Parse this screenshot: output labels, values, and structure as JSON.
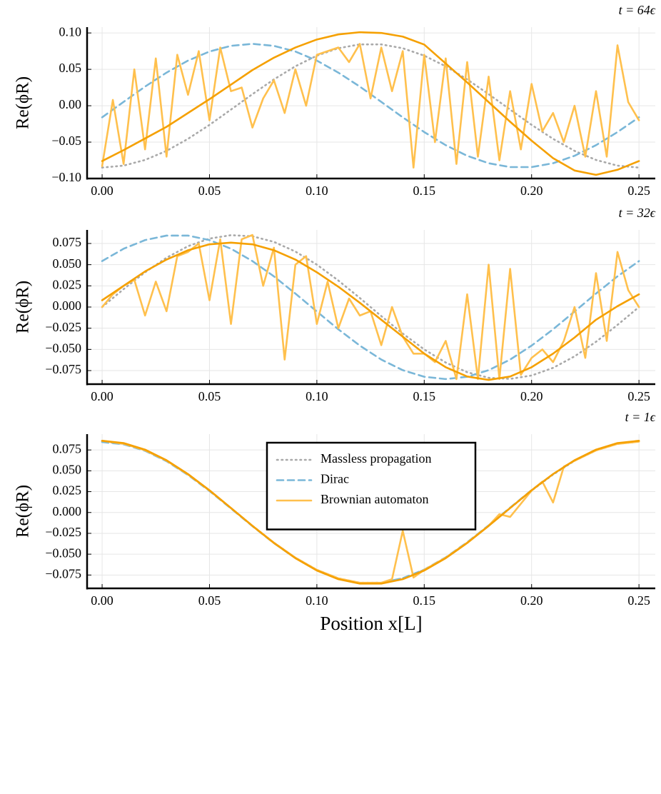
{
  "chart_data": [
    {
      "type": "line",
      "title": "t = 64ϵ",
      "ylabel": "Re(ϕR)",
      "grid": true,
      "xlim": [
        -0.007,
        0.2576
      ],
      "ylim": [
        -0.1,
        0.108
      ],
      "xticks": [
        {
          "value": 0,
          "label": "0.00"
        },
        {
          "value": 0.05,
          "label": "0.05"
        },
        {
          "value": 0.1,
          "label": "0.10"
        },
        {
          "value": 0.15,
          "label": "0.15"
        },
        {
          "value": 0.2,
          "label": "0.20"
        },
        {
          "value": 0.25,
          "label": "0.25"
        }
      ],
      "yticks": [
        {
          "value": -0.1,
          "label": "−0.10"
        },
        {
          "value": -0.05,
          "label": "−0.05"
        },
        {
          "value": 0,
          "label": "0.00"
        },
        {
          "value": 0.05,
          "label": "0.05"
        },
        {
          "value": 0.1,
          "label": "0.10"
        }
      ],
      "x": [
        0,
        0.01,
        0.02,
        0.03,
        0.04,
        0.05,
        0.06,
        0.07,
        0.08,
        0.09,
        0.1,
        0.11,
        0.12,
        0.13,
        0.14,
        0.15,
        0.16,
        0.17,
        0.18,
        0.19,
        0.2,
        0.21,
        0.22,
        0.23,
        0.24,
        0.25
      ],
      "series": [
        {
          "color": "#a9a9a9",
          "dash": "dotted",
          "values": [
            -0.085,
            -0.0823,
            -0.0745,
            -0.062,
            -0.0455,
            -0.0263,
            -0.0053,
            0.0159,
            0.0362,
            0.0542,
            0.0688,
            0.079,
            0.0843,
            0.0843,
            0.079,
            0.0688,
            0.0542,
            0.0362,
            0.0159,
            -0.0053,
            -0.0263,
            -0.0455,
            -0.062,
            -0.0745,
            -0.0823,
            -0.085
          ]
        },
        {
          "color": "#7ab7d8",
          "dash": "dashed",
          "values": [
            -0.0159,
            0.0053,
            0.0263,
            0.0455,
            0.062,
            0.0745,
            0.0823,
            0.085,
            0.0823,
            0.0745,
            0.062,
            0.0455,
            0.0263,
            0.0053,
            -0.0159,
            -0.0362,
            -0.0542,
            -0.0688,
            -0.079,
            -0.0843,
            -0.0843,
            -0.079,
            -0.0688,
            -0.0542,
            -0.0362,
            -0.0159
          ]
        },
        {
          "color": "#ffc04d",
          "dash": "solid",
          "x": [
            0,
            0.005,
            0.01,
            0.015,
            0.02,
            0.025,
            0.03,
            0.035,
            0.04,
            0.045,
            0.05,
            0.055,
            0.06,
            0.065,
            0.07,
            0.075,
            0.08,
            0.085,
            0.09,
            0.095,
            0.1,
            0.105,
            0.11,
            0.115,
            0.12,
            0.125,
            0.13,
            0.135,
            0.14,
            0.145,
            0.15,
            0.155,
            0.16,
            0.165,
            0.17,
            0.175,
            0.18,
            0.185,
            0.19,
            0.195,
            0.2,
            0.205,
            0.21,
            0.215,
            0.22,
            0.225,
            0.23,
            0.235,
            0.24,
            0.245,
            0.25
          ],
          "values": [
            -0.083,
            0.008,
            -0.08,
            0.05,
            -0.06,
            0.065,
            -0.07,
            0.07,
            0.015,
            0.075,
            -0.02,
            0.08,
            0.02,
            0.025,
            -0.03,
            0.01,
            0.035,
            -0.01,
            0.05,
            0,
            0.07,
            0.075,
            0.08,
            0.06,
            0.085,
            0.01,
            0.08,
            0.02,
            0.075,
            -0.085,
            0.07,
            -0.05,
            0.065,
            -0.08,
            0.06,
            -0.07,
            0.04,
            -0.075,
            0.02,
            -0.06,
            0.03,
            -0.035,
            -0.01,
            -0.05,
            0,
            -0.07,
            0.02,
            -0.07,
            0.083,
            0.005,
            -0.02
          ]
        },
        {
          "color": "#f5a000",
          "dash": "solid",
          "values": [
            -0.076,
            -0.061,
            -0.045,
            -0.029,
            -0.01,
            0.009,
            0.029,
            0.049,
            0.066,
            0.08,
            0.091,
            0.098,
            0.101,
            0.1,
            0.095,
            0.084,
            0.058,
            0.032,
            0.005,
            -0.022,
            -0.048,
            -0.072,
            -0.089,
            -0.095,
            -0.088,
            -0.076
          ]
        }
      ]
    },
    {
      "type": "line",
      "title": "t = 32ϵ",
      "ylabel": "Re(ϕR)",
      "grid": true,
      "xlim": [
        -0.007,
        0.2576
      ],
      "ylim": [
        -0.091,
        0.091
      ],
      "xticks": [
        {
          "value": 0,
          "label": "0.00"
        },
        {
          "value": 0.05,
          "label": "0.05"
        },
        {
          "value": 0.1,
          "label": "0.10"
        },
        {
          "value": 0.15,
          "label": "0.15"
        },
        {
          "value": 0.2,
          "label": "0.20"
        },
        {
          "value": 0.25,
          "label": "0.25"
        }
      ],
      "yticks": [
        {
          "value": -0.075,
          "label": "−0.075"
        },
        {
          "value": -0.05,
          "label": "−0.050"
        },
        {
          "value": -0.025,
          "label": "−0.025"
        },
        {
          "value": 0,
          "label": "0.000"
        },
        {
          "value": 0.025,
          "label": "0.025"
        },
        {
          "value": 0.05,
          "label": "0.050"
        },
        {
          "value": 0.075,
          "label": "0.075"
        }
      ],
      "x": [
        0,
        0.01,
        0.02,
        0.03,
        0.04,
        0.05,
        0.06,
        0.07,
        0.08,
        0.09,
        0.1,
        0.11,
        0.12,
        0.13,
        0.14,
        0.15,
        0.16,
        0.17,
        0.18,
        0.19,
        0.2,
        0.21,
        0.22,
        0.23,
        0.24,
        0.25
      ],
      "series": [
        {
          "color": "#a9a9a9",
          "dash": "dotted",
          "values": [
            0,
            0.0211,
            0.041,
            0.0582,
            0.0718,
            0.0808,
            0.0848,
            0.0835,
            0.0769,
            0.0655,
            0.05,
            0.0313,
            0.0107,
            -0.0107,
            -0.0313,
            -0.05,
            -0.0655,
            -0.0769,
            -0.0835,
            -0.0848,
            -0.0808,
            -0.0718,
            -0.0582,
            -0.041,
            -0.0211,
            0
          ]
        },
        {
          "color": "#7ab7d8",
          "dash": "dashed",
          "values": [
            0.0542,
            0.0688,
            0.079,
            0.0843,
            0.0843,
            0.079,
            0.0688,
            0.0542,
            0.0362,
            0.0159,
            -0.0053,
            -0.0263,
            -0.0455,
            -0.062,
            -0.0745,
            -0.0823,
            -0.085,
            -0.0823,
            -0.0745,
            -0.062,
            -0.0455,
            -0.0263,
            -0.0053,
            0.0159,
            0.0362,
            0.0542
          ]
        },
        {
          "color": "#ffc04d",
          "dash": "solid",
          "x": [
            0,
            0.005,
            0.01,
            0.015,
            0.02,
            0.025,
            0.03,
            0.035,
            0.04,
            0.045,
            0.05,
            0.055,
            0.06,
            0.065,
            0.07,
            0.075,
            0.08,
            0.085,
            0.09,
            0.095,
            0.1,
            0.105,
            0.11,
            0.115,
            0.12,
            0.125,
            0.13,
            0.135,
            0.14,
            0.145,
            0.15,
            0.155,
            0.16,
            0.165,
            0.17,
            0.175,
            0.18,
            0.185,
            0.19,
            0.195,
            0.2,
            0.205,
            0.21,
            0.215,
            0.22,
            0.225,
            0.23,
            0.235,
            0.24,
            0.245,
            0.25
          ],
          "values": [
            0,
            0.015,
            0.025,
            0.032,
            -0.01,
            0.03,
            -0.005,
            0.06,
            0.065,
            0.075,
            0.008,
            0.08,
            -0.02,
            0.08,
            0.085,
            0.025,
            0.07,
            -0.062,
            0.05,
            0.06,
            -0.02,
            0.03,
            -0.025,
            0.01,
            -0.01,
            -0.005,
            -0.045,
            0,
            -0.035,
            -0.055,
            -0.055,
            -0.065,
            -0.04,
            -0.085,
            0.015,
            -0.085,
            0.05,
            -0.085,
            0.045,
            -0.08,
            -0.06,
            -0.05,
            -0.065,
            -0.04,
            0,
            -0.06,
            0.04,
            -0.04,
            0.065,
            0.02,
            0
          ]
        },
        {
          "color": "#f5a000",
          "dash": "solid",
          "values": [
            0.008,
            0.025,
            0.042,
            0.056,
            0.067,
            0.074,
            0.076,
            0.074,
            0.067,
            0.056,
            0.041,
            0.024,
            0.005,
            -0.015,
            -0.035,
            -0.055,
            -0.071,
            -0.082,
            -0.086,
            -0.082,
            -0.071,
            -0.055,
            -0.036,
            -0.015,
            0.001,
            0.015
          ]
        }
      ]
    },
    {
      "type": "line",
      "title": "t = 1ϵ",
      "ylabel": "Re(ϕR)",
      "xlabel": "Position x[L]",
      "grid": true,
      "legend": "upper center",
      "xlim": [
        -0.007,
        0.2576
      ],
      "ylim": [
        -0.091,
        0.094
      ],
      "xticks": [
        {
          "value": 0,
          "label": "0.00"
        },
        {
          "value": 0.05,
          "label": "0.05"
        },
        {
          "value": 0.1,
          "label": "0.10"
        },
        {
          "value": 0.15,
          "label": "0.15"
        },
        {
          "value": 0.2,
          "label": "0.20"
        },
        {
          "value": 0.25,
          "label": "0.25"
        }
      ],
      "yticks": [
        {
          "value": -0.075,
          "label": "−0.075"
        },
        {
          "value": -0.05,
          "label": "−0.050"
        },
        {
          "value": -0.025,
          "label": "−0.025"
        },
        {
          "value": 0,
          "label": "0.000"
        },
        {
          "value": 0.025,
          "label": "0.025"
        },
        {
          "value": 0.05,
          "label": "0.050"
        },
        {
          "value": 0.075,
          "label": "0.075"
        }
      ],
      "x": [
        0,
        0.01,
        0.02,
        0.03,
        0.04,
        0.05,
        0.06,
        0.07,
        0.08,
        0.09,
        0.1,
        0.11,
        0.12,
        0.13,
        0.14,
        0.15,
        0.16,
        0.17,
        0.18,
        0.19,
        0.2,
        0.21,
        0.22,
        0.23,
        0.24,
        0.25
      ],
      "series": [
        {
          "name": "Massless propagation",
          "color": "#a9a9a9",
          "dash": "dotted",
          "values": [
            0.085,
            0.0823,
            0.0745,
            0.062,
            0.0455,
            0.0263,
            0.0053,
            -0.0159,
            -0.0362,
            -0.0542,
            -0.0688,
            -0.079,
            -0.0843,
            -0.0843,
            -0.079,
            -0.0688,
            -0.0542,
            -0.0362,
            -0.0159,
            0.0053,
            0.0263,
            0.0455,
            0.062,
            0.0745,
            0.0823,
            0.085
          ]
        },
        {
          "name": "Dirac",
          "color": "#7ab7d8",
          "dash": "dashed",
          "values": [
            0.0845,
            0.0818,
            0.074,
            0.0615,
            0.045,
            0.0258,
            0.0048,
            -0.0164,
            -0.0367,
            -0.0547,
            -0.0692,
            -0.0793,
            -0.0845,
            -0.0843,
            -0.0788,
            -0.0685,
            -0.0538,
            -0.0357,
            -0.0154,
            0.0058,
            0.0268,
            0.046,
            0.0625,
            0.0749,
            0.0826,
            0.0852
          ]
        },
        {
          "name": "Brownian automaton",
          "color": "#ffc04d",
          "dash": "solid",
          "x": [
            0,
            0.01,
            0.02,
            0.03,
            0.04,
            0.05,
            0.06,
            0.07,
            0.08,
            0.09,
            0.1,
            0.11,
            0.12,
            0.13,
            0.135,
            0.14,
            0.145,
            0.15,
            0.16,
            0.17,
            0.18,
            0.185,
            0.19,
            0.2,
            0.205,
            0.21,
            0.215,
            0.22,
            0.23,
            0.24,
            0.25
          ],
          "values": [
            0.086,
            0.0825,
            0.0747,
            0.0622,
            0.0456,
            0.0264,
            0.0053,
            -0.0159,
            -0.0362,
            -0.0542,
            -0.0688,
            -0.079,
            -0.0843,
            -0.0843,
            -0.08,
            -0.022,
            -0.078,
            -0.0688,
            -0.0542,
            -0.0362,
            -0.0159,
            -0.002,
            -0.0053,
            0.0263,
            0.037,
            0.012,
            0.055,
            0.062,
            0.0745,
            0.0823,
            0.085
          ]
        },
        {
          "color": "#f5a000",
          "dash": "solid",
          "values": [
            0.086,
            0.0833,
            0.0754,
            0.0627,
            0.0461,
            0.0266,
            0.0054,
            -0.0161,
            -0.0366,
            -0.0548,
            -0.0696,
            -0.08,
            -0.0853,
            -0.0853,
            -0.08,
            -0.0696,
            -0.0548,
            -0.0366,
            -0.0161,
            0.0054,
            0.0266,
            0.0461,
            0.0627,
            0.0754,
            0.0833,
            0.086
          ]
        }
      ]
    }
  ]
}
